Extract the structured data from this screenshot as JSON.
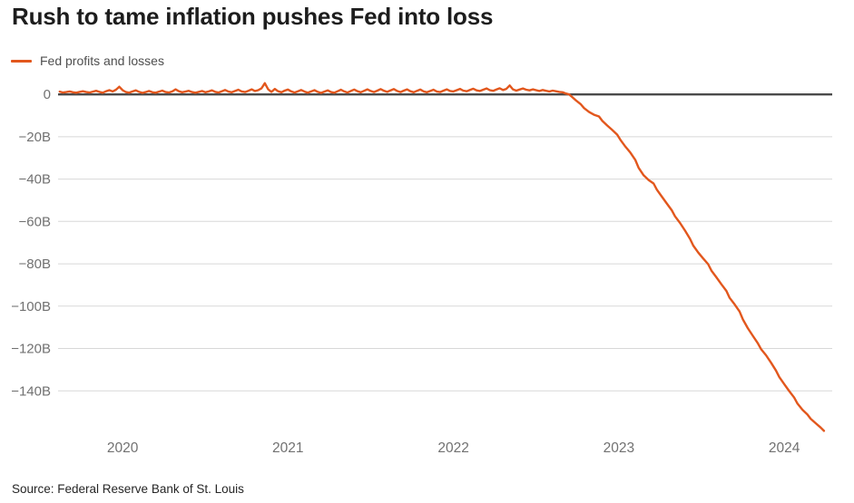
{
  "header": {
    "title": "Rush to tame inflation pushes Fed into loss"
  },
  "legend": {
    "items": [
      {
        "label": "Fed profits and losses",
        "color": "#e2571d"
      }
    ]
  },
  "footer": {
    "source": "Source: Federal Reserve Bank of St. Louis"
  },
  "chart_data": {
    "type": "line",
    "title": "Rush to tame inflation pushes Fed into loss",
    "xlabel": "",
    "ylabel": "",
    "xlim": [
      2019.61,
      2024.29
    ],
    "ylim": [
      -160,
      8.2
    ],
    "grid": true,
    "legend_position": "top-left",
    "grid_color": "#d8d8d8",
    "zero_line_color": "#4a4a4a",
    "tick_label_color": "#717171",
    "xticks": [
      {
        "value": 2020,
        "label": "2020"
      },
      {
        "value": 2021,
        "label": "2021"
      },
      {
        "value": 2022,
        "label": "2022"
      },
      {
        "value": 2023,
        "label": "2023"
      },
      {
        "value": 2024,
        "label": "2024"
      }
    ],
    "yticks": [
      {
        "value": 0,
        "label": "0"
      },
      {
        "value": -20,
        "label": "−20B"
      },
      {
        "value": -40,
        "label": "−40B"
      },
      {
        "value": -60,
        "label": "−60B"
      },
      {
        "value": -80,
        "label": "−80B"
      },
      {
        "value": -100,
        "label": "−100B"
      },
      {
        "value": -120,
        "label": "−120B"
      },
      {
        "value": -140,
        "label": "−140B"
      }
    ],
    "series": [
      {
        "name": "Fed profits and losses",
        "color": "#e2571d",
        "unit": "USD billions",
        "points": [
          [
            2019.62,
            1.3
          ],
          [
            2019.64,
            0.9
          ],
          [
            2019.66,
            1.1
          ],
          [
            2019.68,
            1.4
          ],
          [
            2019.7,
            1.0
          ],
          [
            2019.72,
            0.8
          ],
          [
            2019.74,
            1.2
          ],
          [
            2019.76,
            1.5
          ],
          [
            2019.78,
            1.1
          ],
          [
            2019.8,
            0.9
          ],
          [
            2019.82,
            1.3
          ],
          [
            2019.84,
            1.7
          ],
          [
            2019.86,
            1.2
          ],
          [
            2019.88,
            0.8
          ],
          [
            2019.9,
            1.5
          ],
          [
            2019.92,
            2.0
          ],
          [
            2019.94,
            1.4
          ],
          [
            2019.96,
            2.2
          ],
          [
            2019.98,
            3.6
          ],
          [
            2020.0,
            2.0
          ],
          [
            2020.02,
            1.1
          ],
          [
            2020.04,
            0.8
          ],
          [
            2020.06,
            1.4
          ],
          [
            2020.08,
            1.9
          ],
          [
            2020.1,
            1.2
          ],
          [
            2020.12,
            0.7
          ],
          [
            2020.14,
            1.1
          ],
          [
            2020.16,
            1.6
          ],
          [
            2020.18,
            1.0
          ],
          [
            2020.2,
            0.8
          ],
          [
            2020.22,
            1.3
          ],
          [
            2020.24,
            1.8
          ],
          [
            2020.26,
            1.1
          ],
          [
            2020.28,
            0.9
          ],
          [
            2020.3,
            1.4
          ],
          [
            2020.32,
            2.4
          ],
          [
            2020.34,
            1.5
          ],
          [
            2020.36,
            1.0
          ],
          [
            2020.38,
            1.3
          ],
          [
            2020.4,
            1.7
          ],
          [
            2020.42,
            1.1
          ],
          [
            2020.44,
            0.8
          ],
          [
            2020.46,
            1.2
          ],
          [
            2020.48,
            1.6
          ],
          [
            2020.5,
            1.0
          ],
          [
            2020.52,
            1.4
          ],
          [
            2020.54,
            1.9
          ],
          [
            2020.56,
            1.2
          ],
          [
            2020.58,
            0.9
          ],
          [
            2020.6,
            1.5
          ],
          [
            2020.62,
            2.1
          ],
          [
            2020.64,
            1.3
          ],
          [
            2020.66,
            1.0
          ],
          [
            2020.68,
            1.6
          ],
          [
            2020.7,
            2.2
          ],
          [
            2020.72,
            1.4
          ],
          [
            2020.74,
            1.1
          ],
          [
            2020.76,
            1.7
          ],
          [
            2020.78,
            2.4
          ],
          [
            2020.8,
            1.6
          ],
          [
            2020.82,
            2.0
          ],
          [
            2020.84,
            2.9
          ],
          [
            2020.86,
            5.3
          ],
          [
            2020.88,
            2.4
          ],
          [
            2020.9,
            1.2
          ],
          [
            2020.92,
            2.6
          ],
          [
            2020.94,
            1.5
          ],
          [
            2020.96,
            1.0
          ],
          [
            2020.98,
            1.8
          ],
          [
            2021.0,
            2.3
          ],
          [
            2021.02,
            1.4
          ],
          [
            2021.04,
            0.9
          ],
          [
            2021.06,
            1.5
          ],
          [
            2021.08,
            2.1
          ],
          [
            2021.1,
            1.3
          ],
          [
            2021.12,
            0.8
          ],
          [
            2021.14,
            1.4
          ],
          [
            2021.16,
            2.0
          ],
          [
            2021.18,
            1.2
          ],
          [
            2021.2,
            0.7
          ],
          [
            2021.22,
            1.3
          ],
          [
            2021.24,
            1.9
          ],
          [
            2021.26,
            1.1
          ],
          [
            2021.28,
            0.8
          ],
          [
            2021.3,
            1.5
          ],
          [
            2021.32,
            2.2
          ],
          [
            2021.34,
            1.4
          ],
          [
            2021.36,
            0.9
          ],
          [
            2021.38,
            1.6
          ],
          [
            2021.4,
            2.3
          ],
          [
            2021.42,
            1.5
          ],
          [
            2021.44,
            1.0
          ],
          [
            2021.46,
            1.7
          ],
          [
            2021.48,
            2.4
          ],
          [
            2021.5,
            1.6
          ],
          [
            2021.52,
            1.1
          ],
          [
            2021.54,
            1.8
          ],
          [
            2021.56,
            2.5
          ],
          [
            2021.58,
            1.7
          ],
          [
            2021.6,
            1.2
          ],
          [
            2021.62,
            1.9
          ],
          [
            2021.64,
            2.5
          ],
          [
            2021.66,
            1.6
          ],
          [
            2021.68,
            1.1
          ],
          [
            2021.7,
            1.8
          ],
          [
            2021.72,
            2.4
          ],
          [
            2021.74,
            1.5
          ],
          [
            2021.76,
            1.0
          ],
          [
            2021.78,
            1.7
          ],
          [
            2021.8,
            2.3
          ],
          [
            2021.82,
            1.4
          ],
          [
            2021.84,
            1.0
          ],
          [
            2021.86,
            1.6
          ],
          [
            2021.88,
            2.2
          ],
          [
            2021.9,
            1.3
          ],
          [
            2021.92,
            1.1
          ],
          [
            2021.94,
            1.8
          ],
          [
            2021.96,
            2.4
          ],
          [
            2021.98,
            1.6
          ],
          [
            2022.0,
            1.4
          ],
          [
            2022.02,
            2.0
          ],
          [
            2022.04,
            2.6
          ],
          [
            2022.06,
            1.8
          ],
          [
            2022.08,
            1.5
          ],
          [
            2022.1,
            2.1
          ],
          [
            2022.12,
            2.7
          ],
          [
            2022.14,
            1.9
          ],
          [
            2022.16,
            1.6
          ],
          [
            2022.18,
            2.2
          ],
          [
            2022.2,
            2.8
          ],
          [
            2022.22,
            2.0
          ],
          [
            2022.24,
            1.7
          ],
          [
            2022.26,
            2.3
          ],
          [
            2022.28,
            2.9
          ],
          [
            2022.3,
            2.1
          ],
          [
            2022.32,
            2.6
          ],
          [
            2022.34,
            4.2
          ],
          [
            2022.36,
            2.4
          ],
          [
            2022.38,
            1.8
          ],
          [
            2022.4,
            2.3
          ],
          [
            2022.42,
            2.8
          ],
          [
            2022.44,
            2.2
          ],
          [
            2022.46,
            1.9
          ],
          [
            2022.48,
            2.4
          ],
          [
            2022.5,
            2.0
          ],
          [
            2022.52,
            1.6
          ],
          [
            2022.54,
            2.1
          ],
          [
            2022.56,
            1.7
          ],
          [
            2022.58,
            1.4
          ],
          [
            2022.6,
            1.8
          ],
          [
            2022.62,
            1.5
          ],
          [
            2022.64,
            1.2
          ],
          [
            2022.66,
            1.0
          ],
          [
            2022.68,
            0.4
          ],
          [
            2022.7,
            0.0
          ],
          [
            2022.72,
            -1.4
          ],
          [
            2022.74,
            -2.8
          ],
          [
            2022.77,
            -4.7
          ],
          [
            2022.79,
            -6.5
          ],
          [
            2022.82,
            -8.3
          ],
          [
            2022.85,
            -9.6
          ],
          [
            2022.88,
            -10.4
          ],
          [
            2022.9,
            -12.5
          ],
          [
            2022.93,
            -14.7
          ],
          [
            2022.96,
            -16.8
          ],
          [
            2022.99,
            -19.0
          ],
          [
            2023.01,
            -21.5
          ],
          [
            2023.04,
            -24.7
          ],
          [
            2023.07,
            -27.5
          ],
          [
            2023.1,
            -31.0
          ],
          [
            2023.12,
            -34.7
          ],
          [
            2023.15,
            -38.2
          ],
          [
            2023.18,
            -40.4
          ],
          [
            2023.21,
            -42.1
          ],
          [
            2023.23,
            -45.0
          ],
          [
            2023.26,
            -48.3
          ],
          [
            2023.29,
            -51.5
          ],
          [
            2023.32,
            -54.7
          ],
          [
            2023.34,
            -57.6
          ],
          [
            2023.37,
            -60.7
          ],
          [
            2023.4,
            -64.3
          ],
          [
            2023.43,
            -68.2
          ],
          [
            2023.45,
            -71.4
          ],
          [
            2023.48,
            -74.7
          ],
          [
            2023.51,
            -77.5
          ],
          [
            2023.54,
            -80.2
          ],
          [
            2023.56,
            -83.2
          ],
          [
            2023.59,
            -86.4
          ],
          [
            2023.62,
            -89.7
          ],
          [
            2023.65,
            -92.8
          ],
          [
            2023.67,
            -96.1
          ],
          [
            2023.7,
            -99.2
          ],
          [
            2023.73,
            -102.5
          ],
          [
            2023.75,
            -106.3
          ],
          [
            2023.78,
            -110.4
          ],
          [
            2023.81,
            -114.0
          ],
          [
            2023.84,
            -117.5
          ],
          [
            2023.86,
            -120.3
          ],
          [
            2023.89,
            -123.2
          ],
          [
            2023.92,
            -126.7
          ],
          [
            2023.95,
            -130.4
          ],
          [
            2023.97,
            -133.5
          ],
          [
            2024.0,
            -136.8
          ],
          [
            2024.03,
            -140.1
          ],
          [
            2024.06,
            -143.2
          ],
          [
            2024.08,
            -146.0
          ],
          [
            2024.11,
            -148.9
          ],
          [
            2024.14,
            -151.2
          ],
          [
            2024.16,
            -153.2
          ],
          [
            2024.19,
            -155.3
          ],
          [
            2024.22,
            -157.3
          ],
          [
            2024.24,
            -158.9
          ]
        ]
      }
    ]
  }
}
